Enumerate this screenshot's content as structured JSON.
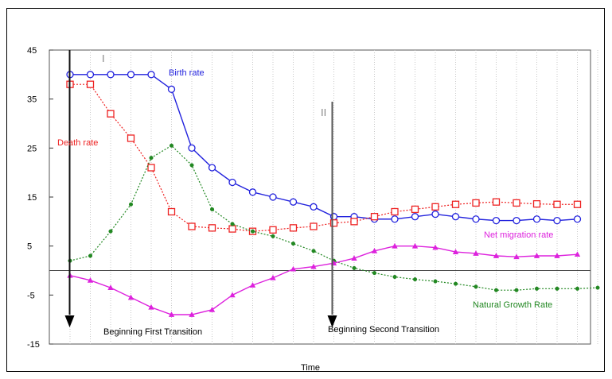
{
  "chart_data": {
    "type": "line",
    "title": "",
    "xlabel": "Time",
    "ylabel": "",
    "ylim": [
      -15,
      45
    ],
    "yticks": [
      -15,
      -5,
      5,
      15,
      25,
      35,
      45
    ],
    "ytick_labels": [
      "-15",
      "-5",
      "5",
      "15",
      "25",
      "35",
      "45"
    ],
    "x": [
      1,
      2,
      3,
      4,
      5,
      6,
      7,
      8,
      9,
      10,
      11,
      12,
      13,
      14,
      15,
      16,
      17,
      18,
      19,
      20,
      21,
      22,
      23,
      24,
      25,
      26,
      27
    ],
    "grid": true,
    "series": [
      {
        "name": "Birth rate",
        "color": "#2222dd",
        "marker": "circle",
        "linestyle": "solid",
        "values": [
          40,
          40,
          40,
          40,
          40,
          37,
          25,
          21,
          18,
          16,
          15,
          14,
          13,
          11,
          11,
          10.5,
          10.5,
          11,
          11.5,
          11,
          10.5,
          10.2,
          10.2,
          10.5,
          10.2,
          10.5,
          null
        ]
      },
      {
        "name": "Death rate",
        "color": "#ee2222",
        "marker": "square",
        "linestyle": "dotted",
        "values": [
          38,
          38,
          32,
          27,
          21,
          12,
          9,
          8.7,
          8.5,
          8,
          8.3,
          8.7,
          9,
          9.7,
          10,
          11,
          12,
          12.5,
          13,
          13.5,
          13.8,
          14,
          13.8,
          13.6,
          13.5,
          13.5,
          null
        ]
      },
      {
        "name": "Natural Growth Rate",
        "color": "#228822",
        "marker": "dot",
        "linestyle": "dotted",
        "values": [
          2,
          3,
          8,
          13.5,
          23,
          25.5,
          21.5,
          12.5,
          9.5,
          8,
          7,
          5.5,
          4,
          2,
          0.5,
          -0.5,
          -1.3,
          -1.8,
          -2.2,
          -2.7,
          -3.3,
          -4,
          -4,
          -3.7,
          -3.7,
          -3.7,
          -3.5
        ]
      },
      {
        "name": "Net migration rate",
        "color": "#dd22dd",
        "marker": "triangle",
        "linestyle": "solid",
        "values": [
          -1,
          -2,
          -3.5,
          -5.5,
          -7.5,
          -9,
          -9,
          -8,
          -5,
          -3,
          -1.5,
          0.3,
          0.8,
          1.5,
          2.5,
          4,
          5,
          5,
          4.7,
          3.8,
          3.5,
          3,
          2.8,
          3,
          3,
          3.3,
          null
        ]
      }
    ],
    "annotations": [
      {
        "text": "Birth rate",
        "color": "#2222dd"
      },
      {
        "text": "Death rate",
        "color": "#ee2222"
      },
      {
        "text": "Net migration rate",
        "color": "#dd22dd"
      },
      {
        "text": "Natural Growth Rate",
        "color": "#228822"
      },
      {
        "text": "Beginning First Transition",
        "color": "#000000"
      },
      {
        "text": "Beginning Second Transition",
        "color": "#000000"
      },
      {
        "text": "I",
        "color": "#888888"
      },
      {
        "text": "II",
        "color": "#888888"
      }
    ],
    "transitions": [
      {
        "x": 2,
        "label": "Beginning First Transition",
        "roman": "I"
      },
      {
        "x": 14,
        "label": "Beginning Second Transition",
        "roman": "II"
      }
    ]
  }
}
